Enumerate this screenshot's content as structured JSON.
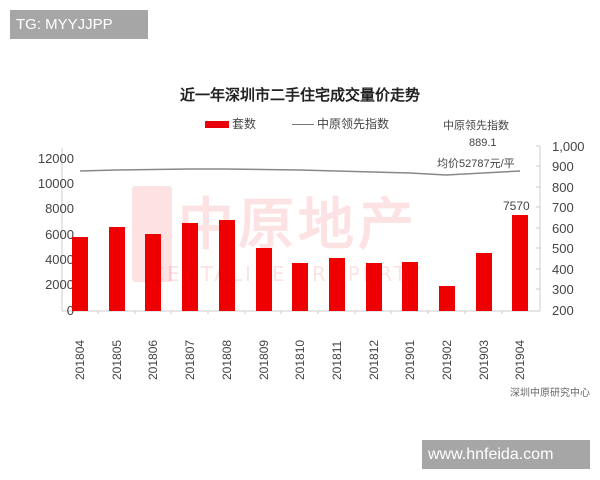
{
  "watermarks": {
    "top_tag": "TG: MYYJJPP",
    "bottom_tag": "www.hnfeida.com",
    "chart_logo_cn": "中原地产",
    "chart_logo_en": "CENTALINE PROPERTY"
  },
  "chart_data": {
    "type": "bar",
    "title": "近一年深圳市二手住宅成交量价走势",
    "legend": [
      "套数",
      "中原领先指数"
    ],
    "legend_position": "top",
    "categories": [
      "201804",
      "201805",
      "201806",
      "201807",
      "201808",
      "201809",
      "201810",
      "201811",
      "201812",
      "201901",
      "201902",
      "201903",
      "201904"
    ],
    "series": [
      {
        "name": "套数",
        "type": "bar",
        "axis": "left",
        "color": "#ee0000",
        "values": [
          5850,
          6650,
          6080,
          6950,
          7180,
          4970,
          3800,
          4180,
          3800,
          3870,
          1970,
          4580,
          7570
        ]
      },
      {
        "name": "中原领先指数",
        "type": "line",
        "axis": "right",
        "color": "#888888",
        "values": [
          880,
          885,
          887,
          890,
          890,
          888,
          885,
          882,
          880,
          876,
          870,
          880,
          889.1
        ]
      }
    ],
    "y_left": {
      "ticks": [
        "12000",
        "10000",
        "8000",
        "6000",
        "4000",
        "2000",
        "0"
      ],
      "range": [
        0,
        12000
      ]
    },
    "y_right": {
      "ticks": [
        "1,000",
        "900",
        "800",
        "700",
        "600",
        "500",
        "400",
        "300",
        "200"
      ],
      "range": [
        200,
        1000
      ]
    },
    "xlabel": "",
    "ylabel": "",
    "grid": false,
    "annotations": {
      "index_label": "中原领先指数",
      "index_value": "889.1",
      "avg_price": "均价52787元/平",
      "last_bar_value": "7570"
    },
    "source": "深圳中原研究中心"
  }
}
